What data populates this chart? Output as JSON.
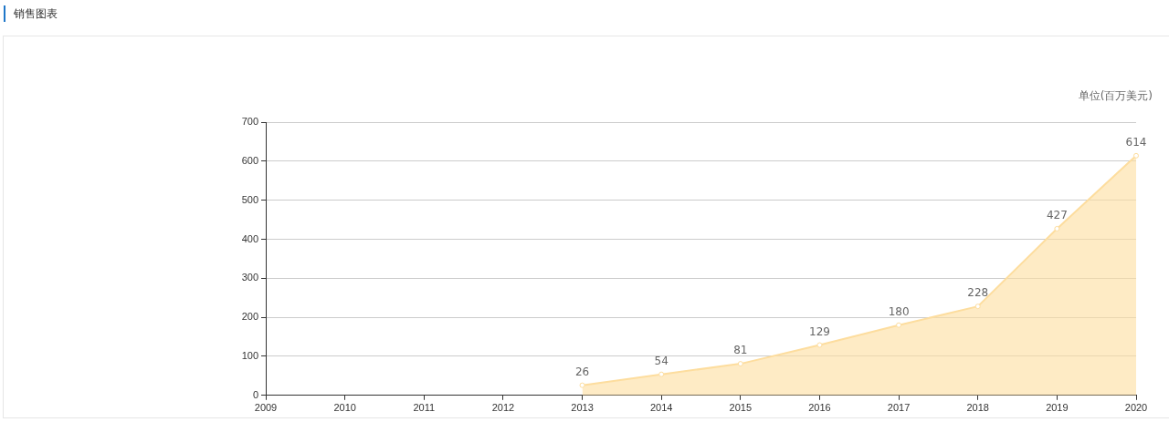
{
  "chart_data": {
    "type": "area",
    "title": "销售图表",
    "ylabel": "单位(百万美元)",
    "categories": [
      "2009",
      "2010",
      "2011",
      "2012",
      "2013",
      "2014",
      "2015",
      "2016",
      "2017",
      "2018",
      "2019",
      "2020"
    ],
    "series": [
      {
        "color": "#fddd9e",
        "values": [
          null,
          null,
          null,
          null,
          26,
          54,
          81,
          129,
          180,
          228,
          427,
          614
        ]
      }
    ],
    "ylim": [
      0,
      700
    ],
    "yticks": [
      0,
      100,
      200,
      300,
      400,
      500,
      600,
      700
    ],
    "grid": "y",
    "legend": false,
    "marker": "circle",
    "data_labels": true
  }
}
